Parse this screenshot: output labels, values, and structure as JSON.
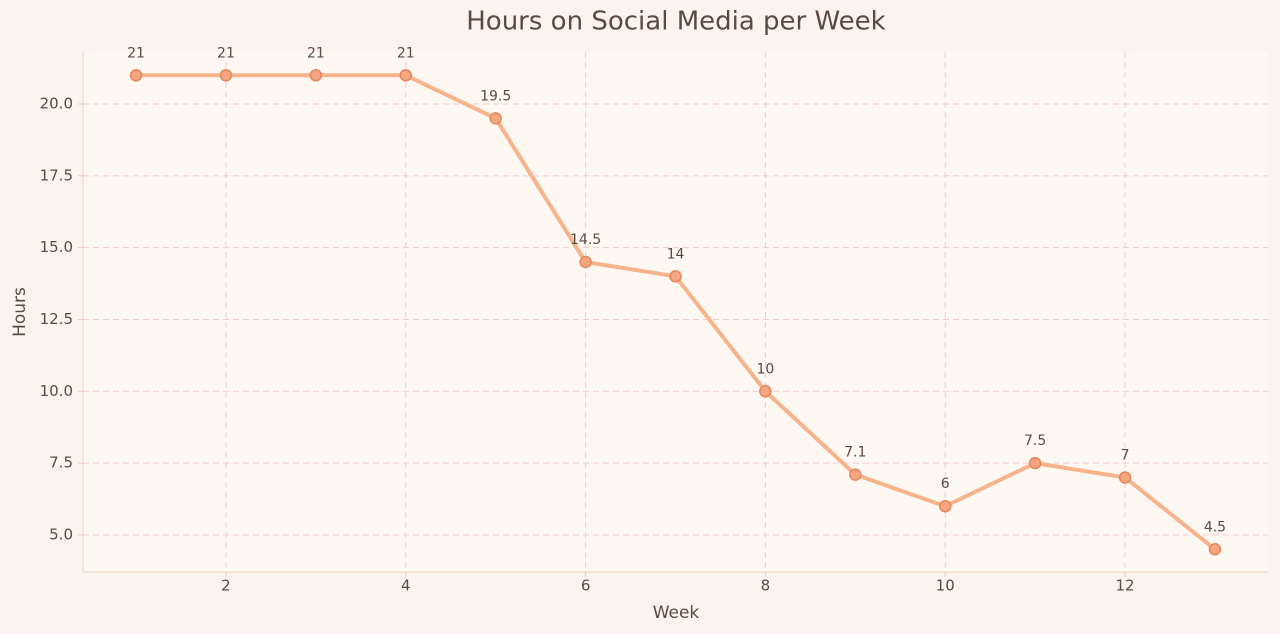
{
  "chart_data": {
    "type": "line",
    "title": "Hours on Social Media per Week",
    "x_label": "Week",
    "y_label": "Hours",
    "x": [
      1,
      2,
      3,
      4,
      5,
      6,
      7,
      8,
      9,
      10,
      11,
      12,
      13
    ],
    "values": [
      21,
      21,
      21,
      21,
      19.5,
      14.5,
      14,
      10,
      7.1,
      6,
      7.5,
      7,
      4.5
    ],
    "color": "#f7b48c",
    "marker_color": "#f5a57f",
    "xlim": [
      0.41,
      13.59
    ],
    "xticks": [
      2,
      4,
      6,
      8,
      10,
      12
    ],
    "ylim": [
      3.71,
      21.81
    ],
    "yticks": [
      {
        "value": 5,
        "label": "5.0"
      },
      7.5,
      {
        "value": 10,
        "label": "10.0"
      },
      12.5,
      {
        "value": 15,
        "label": "15.0"
      },
      17.5,
      {
        "value": 20,
        "label": "20.0"
      }
    ],
    "grid": true
  }
}
